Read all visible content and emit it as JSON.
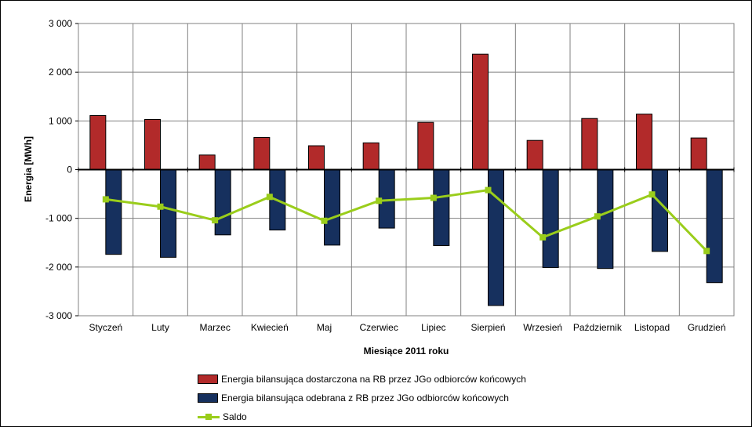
{
  "chart_data": {
    "type": "bar",
    "xlabel": "Miesiące 2011  roku",
    "ylabel": "Energia [MWh]",
    "ylim": [
      -3000,
      3000
    ],
    "yticks": [
      3000,
      2000,
      1000,
      0,
      -1000,
      -2000,
      -3000
    ],
    "ytick_labels": [
      "3 000",
      "2 000",
      "1 000",
      "0",
      "-1 000",
      "-2 000",
      "-3 000"
    ],
    "grid": true,
    "legend_position": "bottom",
    "categories": [
      "Styczeń",
      "Luty",
      "Marzec",
      "Kwiecień",
      "Maj",
      "Czerwiec",
      "Lipiec",
      "Sierpień",
      "Wrzesień",
      "Październik",
      "Listopad",
      "Grudzień"
    ],
    "series": [
      {
        "name": "Energia bilansująca dostarczona na RB przez JGo odbiorców końcowych",
        "kind": "bar",
        "color": "#B22A2A",
        "values": [
          1110,
          1030,
          300,
          660,
          490,
          550,
          970,
          2370,
          600,
          1050,
          1140,
          650
        ]
      },
      {
        "name": "Energia bilansująca odebrana z RB przez JGo odbiorców końcowych",
        "kind": "bar",
        "color": "#16305E",
        "values": [
          -1740,
          -1800,
          -1340,
          -1240,
          -1550,
          -1200,
          -1560,
          -2790,
          -2010,
          -2030,
          -1680,
          -2320
        ]
      },
      {
        "name": "Saldo",
        "kind": "line",
        "color": "#9ACD1B",
        "values": [
          -610,
          -760,
          -1040,
          -560,
          -1050,
          -640,
          -580,
          -420,
          -1390,
          -960,
          -510,
          -1670
        ]
      }
    ]
  }
}
